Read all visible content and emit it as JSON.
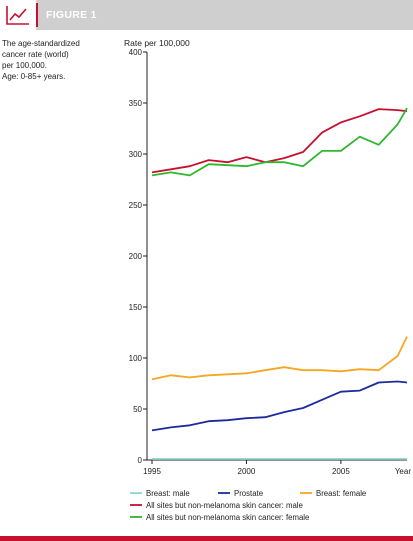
{
  "header": {
    "title": "FIGURE 1",
    "icon": "line-chart-icon",
    "accent_color": "#c8102e"
  },
  "description": {
    "lines": [
      "The age-standardized",
      "cancer rate (world)",
      "per 100,000.",
      "Age: 0-85+ years."
    ]
  },
  "chart_data": {
    "type": "line",
    "ylabel": "Rate per 100,000",
    "xlabel": "Year",
    "ylim": [
      0,
      400
    ],
    "xlim": [
      1995,
      2008.5
    ],
    "y_ticks": [
      0,
      50,
      100,
      150,
      200,
      250,
      300,
      350,
      400
    ],
    "x_ticks": [
      1995,
      2000,
      2005
    ],
    "grid": false,
    "legend_position": "bottom",
    "x": [
      1995,
      1996,
      1997,
      1998,
      1999,
      2000,
      2001,
      2002,
      2003,
      2004,
      2005,
      2006,
      2007,
      2008,
      2008.5
    ],
    "series": [
      {
        "name": "Breast: male",
        "color": "#8fd3cf",
        "values": [
          1,
          1,
          1,
          1,
          1,
          1,
          1,
          1,
          1,
          1,
          1,
          1,
          1,
          1,
          1
        ]
      },
      {
        "name": "Prostate",
        "color": "#1c2a9c",
        "values": [
          29,
          32,
          34,
          38,
          39,
          41,
          42,
          47,
          51,
          59,
          67,
          68,
          76,
          77,
          76
        ]
      },
      {
        "name": "Breast: female",
        "color": "#f5a623",
        "values": [
          79,
          83,
          81,
          83,
          84,
          85,
          88,
          91,
          88,
          88,
          87,
          89,
          88,
          102,
          121
        ]
      },
      {
        "name": "All sites but non-melanoma skin cancer: male",
        "color": "#c8102e",
        "values": [
          282,
          285,
          288,
          294,
          292,
          297,
          292,
          296,
          302,
          321,
          331,
          337,
          344,
          343,
          342
        ]
      },
      {
        "name": "All sites but non-melanoma skin cancer: female",
        "color": "#2eb82e",
        "values": [
          279,
          282,
          279,
          290,
          289,
          288,
          292,
          292,
          288,
          303,
          303,
          317,
          309,
          329,
          345
        ]
      }
    ]
  }
}
